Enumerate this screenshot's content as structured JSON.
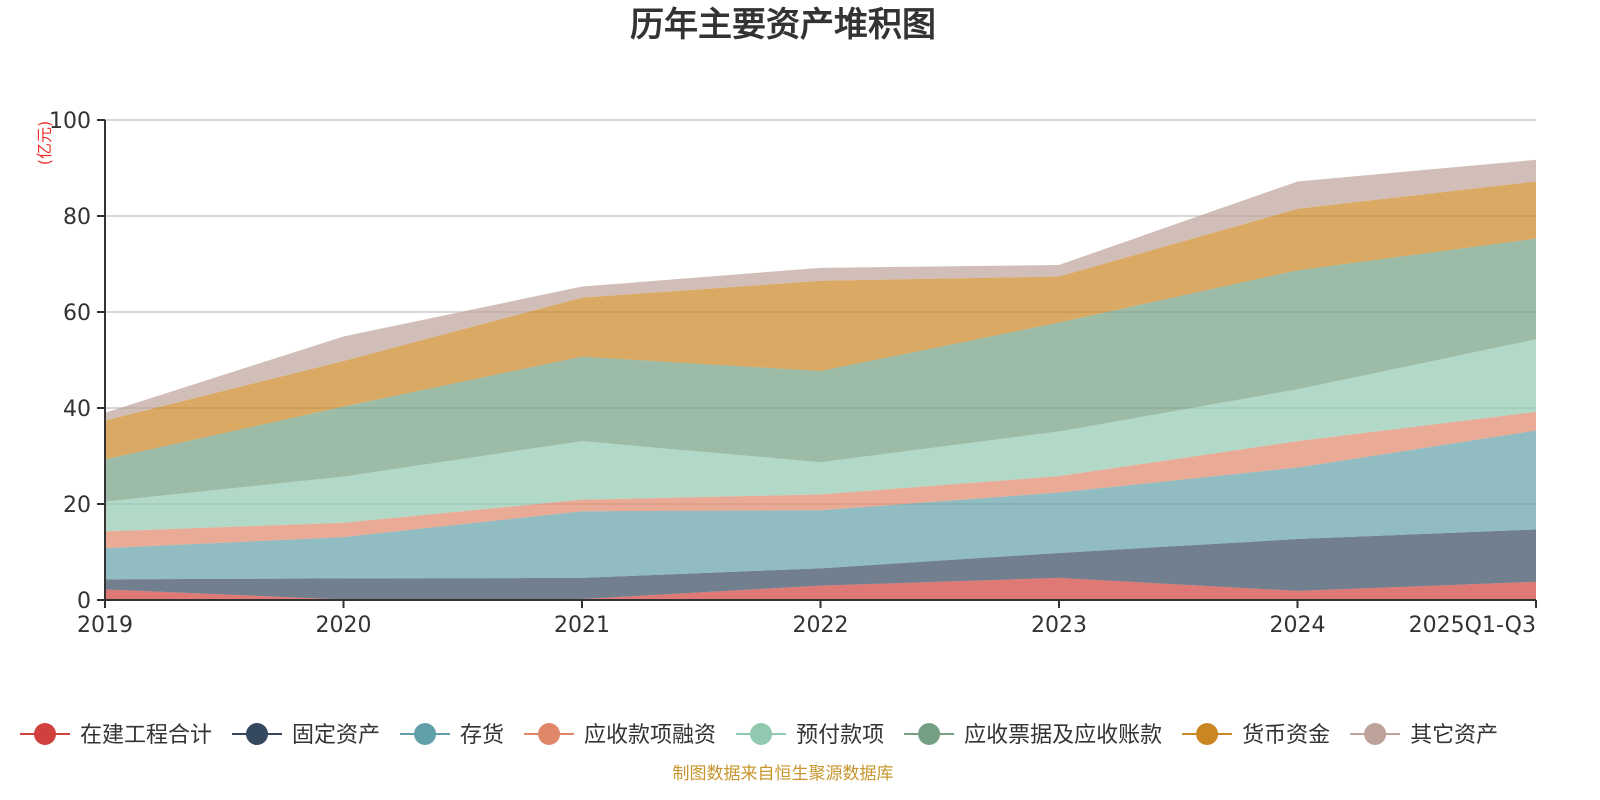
{
  "chart_data": {
    "type": "area",
    "stacked": true,
    "title": "历年主要资产堆积图",
    "ylabel": "(亿元)",
    "xlabel": "",
    "categories": [
      "2019",
      "2020",
      "2021",
      "2022",
      "2023",
      "2024",
      "2025Q1-Q3"
    ],
    "ylim": [
      0,
      100
    ],
    "yticks": [
      0,
      20,
      40,
      60,
      80,
      100
    ],
    "grid": true,
    "legend_position": "bottom",
    "series": [
      {
        "name": "在建工程合计",
        "color": "#d0403c",
        "values": [
          2.2,
          0.1,
          0.2,
          3.0,
          4.6,
          1.9,
          3.8
        ]
      },
      {
        "name": "固定资产",
        "color": "#34495e",
        "values": [
          2.1,
          4.4,
          4.4,
          3.6,
          5.2,
          10.8,
          10.9
        ]
      },
      {
        "name": "存货",
        "color": "#61a0a8",
        "values": [
          6.5,
          8.6,
          13.9,
          12.1,
          12.6,
          14.9,
          20.6
        ]
      },
      {
        "name": "应收款项融资",
        "color": "#e0876a",
        "values": [
          3.5,
          3.0,
          2.4,
          3.3,
          3.4,
          5.5,
          3.9
        ]
      },
      {
        "name": "预付款项",
        "color": "#91c9b0",
        "values": [
          6.2,
          9.6,
          12.2,
          6.7,
          9.3,
          10.8,
          15.1
        ]
      },
      {
        "name": "应收票据及应收账款",
        "color": "#749f83",
        "values": [
          8.8,
          14.6,
          17.6,
          19.0,
          22.7,
          24.8,
          21.0
        ]
      },
      {
        "name": "货币资金",
        "color": "#ca8622",
        "values": [
          8.1,
          9.5,
          12.3,
          18.8,
          9.6,
          12.8,
          11.9
        ]
      },
      {
        "name": "其它资产",
        "color": "#bda29a",
        "values": [
          1.6,
          5.1,
          2.3,
          2.7,
          2.4,
          5.7,
          4.5
        ]
      }
    ]
  },
  "source_note": "制图数据来自恒生聚源数据库"
}
